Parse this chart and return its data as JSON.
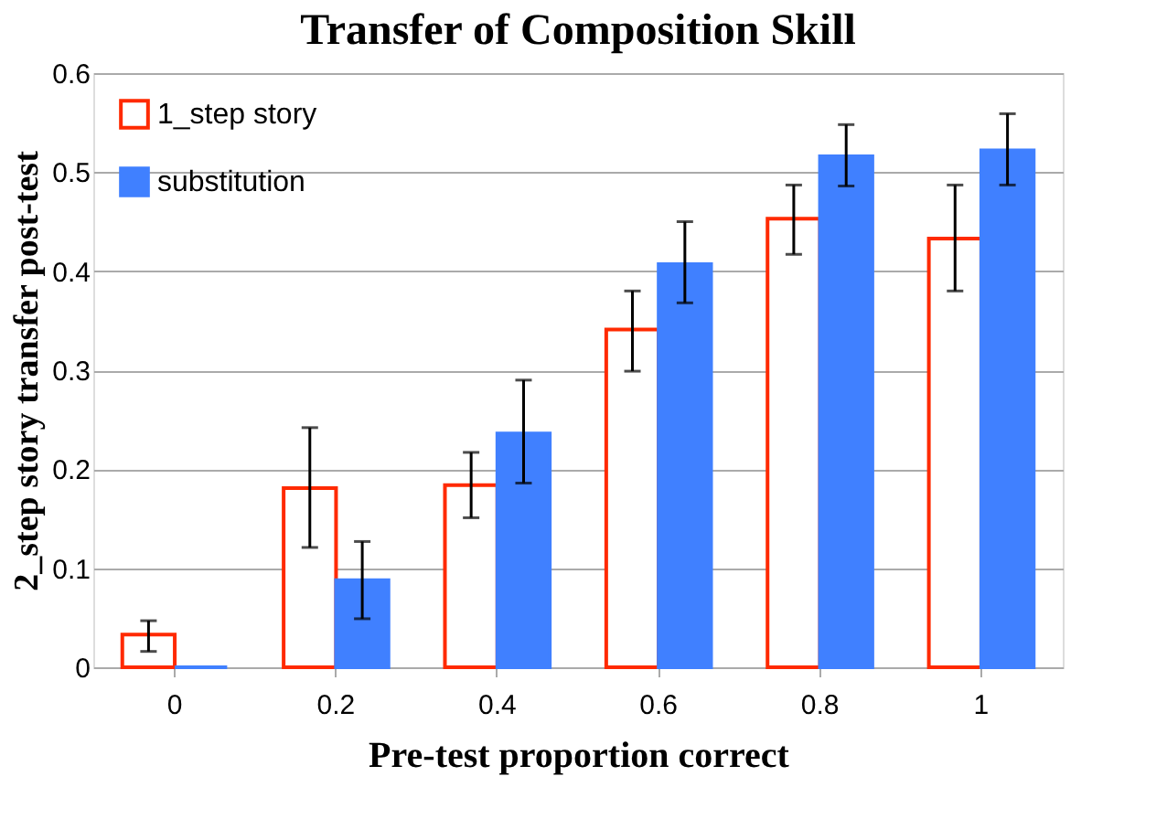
{
  "chart_data": {
    "type": "bar",
    "title": "Transfer of Composition Skill",
    "xlabel": "Pre-test proportion correct",
    "ylabel": "2_step story transfer post-test",
    "categories": [
      "0",
      "0.2",
      "0.4",
      "0.6",
      "0.8",
      "1"
    ],
    "series": [
      {
        "name": "1_step story",
        "color": "#ff2a00",
        "values": [
          0.033,
          0.181,
          0.184,
          0.341,
          0.453,
          0.433
        ],
        "errors": [
          [
            0.016,
            0.047
          ],
          [
            0.121,
            0.242
          ],
          [
            0.151,
            0.217
          ],
          [
            0.299,
            0.38
          ],
          [
            0.417,
            0.487
          ],
          [
            0.38,
            0.487
          ]
        ]
      },
      {
        "name": "substitution",
        "color": "#4080ff",
        "values": [
          0,
          0.088,
          0.236,
          0.407,
          0.516,
          0.522
        ],
        "errors": [
          null,
          [
            0.049,
            0.127
          ],
          [
            0.186,
            0.29
          ],
          [
            0.368,
            0.45
          ],
          [
            0.486,
            0.548
          ],
          [
            0.487,
            0.559
          ]
        ]
      }
    ],
    "ylim": [
      0,
      0.6
    ],
    "yticks": [
      0,
      0.1,
      0.2,
      0.3,
      0.4,
      0.5,
      0.6
    ],
    "grid": "y",
    "legend": "top left"
  }
}
